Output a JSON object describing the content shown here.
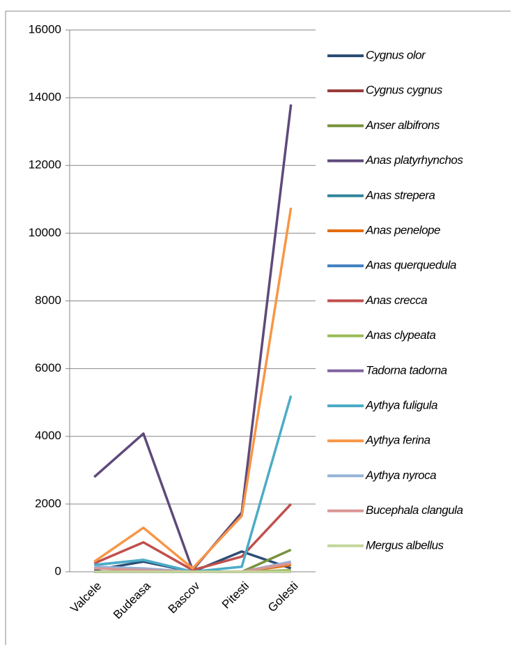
{
  "chart_data": {
    "type": "line",
    "categories": [
      "Valcele",
      "Budeasa",
      "Bascov",
      "Pitesti",
      "Golesti"
    ],
    "ylim": [
      0,
      16000
    ],
    "yticks": [
      0,
      2000,
      4000,
      6000,
      8000,
      10000,
      12000,
      14000,
      16000
    ],
    "grid": true,
    "legend": "right",
    "series": [
      {
        "name": "Cygnus olor",
        "color": "#2c4d75",
        "values": [
          50,
          300,
          0,
          600,
          100
        ]
      },
      {
        "name": "Cygnus cygnus",
        "color": "#953735",
        "values": [
          0,
          0,
          0,
          0,
          200
        ]
      },
      {
        "name": "Anser albifrons",
        "color": "#77933c",
        "values": [
          0,
          0,
          0,
          0,
          650
        ]
      },
      {
        "name": "Anas platyrhynchos",
        "color": "#5f497a",
        "values": [
          2800,
          4080,
          50,
          1750,
          13800
        ]
      },
      {
        "name": "Anas strepera",
        "color": "#31859c",
        "values": [
          200,
          350,
          0,
          0,
          250
        ]
      },
      {
        "name": "Anas penelope",
        "color": "#e46c0a",
        "values": [
          100,
          50,
          0,
          0,
          200
        ]
      },
      {
        "name": "Anas querquedula",
        "color": "#3f7fc0",
        "values": [
          0,
          0,
          0,
          0,
          20
        ]
      },
      {
        "name": "Anas crecca",
        "color": "#c0504d",
        "values": [
          250,
          870,
          50,
          450,
          2000
        ]
      },
      {
        "name": "Anas clypeata",
        "color": "#9bbb59",
        "values": [
          0,
          0,
          0,
          0,
          50
        ]
      },
      {
        "name": "Tadorna tadorna",
        "color": "#8064a2",
        "values": [
          0,
          0,
          0,
          0,
          0
        ]
      },
      {
        "name": "Aythya fuligula",
        "color": "#4bacc6",
        "values": [
          200,
          350,
          0,
          150,
          5200
        ]
      },
      {
        "name": "Aythya ferina",
        "color": "#f79646",
        "values": [
          300,
          1300,
          100,
          1650,
          10750
        ]
      },
      {
        "name": "Aythya nyroca",
        "color": "#95b3d7",
        "values": [
          150,
          100,
          0,
          0,
          300
        ]
      },
      {
        "name": "Bucephala clangula",
        "color": "#d99694",
        "values": [
          100,
          50,
          0,
          0,
          250
        ]
      },
      {
        "name": "Mergus albellus",
        "color": "#c3d69b",
        "values": [
          0,
          0,
          0,
          0,
          0
        ]
      }
    ]
  }
}
